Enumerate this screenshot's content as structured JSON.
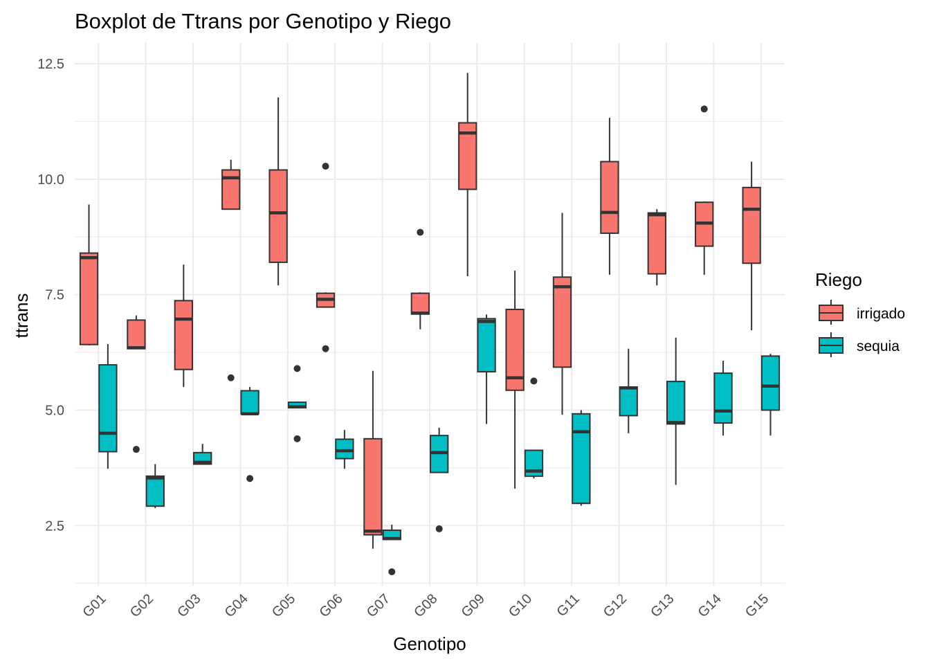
{
  "chart_data": {
    "type": "boxplot",
    "title": "Boxplot de Ttrans por Genotipo y Riego",
    "xlabel": "Genotipo",
    "ylabel": "ttrans",
    "ylim": [
      1.2,
      12.95
    ],
    "yticks": [
      2.5,
      5.0,
      7.5,
      10.0,
      12.5
    ],
    "ytick_labels": [
      "2.5",
      "5.0",
      "7.5",
      "10.0",
      "12.5"
    ],
    "categories": [
      "G01",
      "G02",
      "G03",
      "G04",
      "G05",
      "G06",
      "G07",
      "G08",
      "G09",
      "G10",
      "G11",
      "G12",
      "G13",
      "G14",
      "G15"
    ],
    "grid": true,
    "legend": {
      "title": "Riego",
      "position": "right"
    },
    "series": [
      {
        "name": "irrigado",
        "color": "#F8766D",
        "boxes": [
          {
            "whisker_low": 6.4,
            "q1": 6.42,
            "median": 8.3,
            "q3": 8.4,
            "whisker_high": 9.45,
            "outliers": []
          },
          {
            "whisker_low": 6.33,
            "q1": 6.33,
            "median": 6.35,
            "q3": 6.95,
            "whisker_high": 7.05,
            "outliers": [
              4.15
            ]
          },
          {
            "whisker_low": 5.5,
            "q1": 5.88,
            "median": 6.97,
            "q3": 7.37,
            "whisker_high": 8.15,
            "outliers": []
          },
          {
            "whisker_low": 9.35,
            "q1": 9.35,
            "median": 10.03,
            "q3": 10.2,
            "whisker_high": 10.42,
            "outliers": [
              5.7
            ]
          },
          {
            "whisker_low": 7.7,
            "q1": 8.2,
            "median": 9.27,
            "q3": 10.2,
            "whisker_high": 11.77,
            "outliers": []
          },
          {
            "whisker_low": 7.23,
            "q1": 7.23,
            "median": 7.4,
            "q3": 7.53,
            "whisker_high": 7.55,
            "outliers": [
              10.28,
              6.33
            ]
          },
          {
            "whisker_low": 2.0,
            "q1": 2.3,
            "median": 2.38,
            "q3": 4.38,
            "whisker_high": 5.85,
            "outliers": []
          },
          {
            "whisker_low": 6.75,
            "q1": 7.08,
            "median": 7.1,
            "q3": 7.53,
            "whisker_high": 7.55,
            "outliers": [
              8.85
            ]
          },
          {
            "whisker_low": 7.9,
            "q1": 9.78,
            "median": 11.0,
            "q3": 11.22,
            "whisker_high": 12.3,
            "outliers": []
          },
          {
            "whisker_low": 3.3,
            "q1": 5.43,
            "median": 5.7,
            "q3": 7.18,
            "whisker_high": 8.02,
            "outliers": []
          },
          {
            "whisker_low": 4.9,
            "q1": 5.93,
            "median": 7.67,
            "q3": 7.88,
            "whisker_high": 9.27,
            "outliers": []
          },
          {
            "whisker_low": 7.93,
            "q1": 8.83,
            "median": 9.28,
            "q3": 10.38,
            "whisker_high": 11.33,
            "outliers": []
          },
          {
            "whisker_low": 7.7,
            "q1": 7.95,
            "median": 9.23,
            "q3": 9.27,
            "whisker_high": 9.35,
            "outliers": []
          },
          {
            "whisker_low": 7.93,
            "q1": 8.55,
            "median": 9.05,
            "q3": 9.5,
            "whisker_high": 9.52,
            "outliers": [
              11.52
            ]
          },
          {
            "whisker_low": 6.73,
            "q1": 8.18,
            "median": 9.35,
            "q3": 9.82,
            "whisker_high": 10.38,
            "outliers": []
          }
        ]
      },
      {
        "name": "sequia",
        "color": "#00BFC4",
        "boxes": [
          {
            "whisker_low": 3.73,
            "q1": 4.1,
            "median": 4.5,
            "q3": 5.98,
            "whisker_high": 6.43,
            "outliers": []
          },
          {
            "whisker_low": 2.88,
            "q1": 2.92,
            "median": 3.53,
            "q3": 3.57,
            "whisker_high": 3.83,
            "outliers": []
          },
          {
            "whisker_low": 3.82,
            "q1": 3.83,
            "median": 3.87,
            "q3": 4.08,
            "whisker_high": 4.27,
            "outliers": []
          },
          {
            "whisker_low": 4.92,
            "q1": 4.92,
            "median": 4.92,
            "q3": 5.42,
            "whisker_high": 5.5,
            "outliers": [
              3.52
            ]
          },
          {
            "whisker_low": 5.05,
            "q1": 5.05,
            "median": 5.07,
            "q3": 5.17,
            "whisker_high": 5.18,
            "outliers": [
              5.9,
              4.38
            ]
          },
          {
            "whisker_low": 3.73,
            "q1": 3.95,
            "median": 4.12,
            "q3": 4.37,
            "whisker_high": 4.57,
            "outliers": []
          },
          {
            "whisker_low": 2.2,
            "q1": 2.2,
            "median": 2.22,
            "q3": 2.4,
            "whisker_high": 2.52,
            "outliers": [
              1.5
            ]
          },
          {
            "whisker_low": 3.65,
            "q1": 3.65,
            "median": 4.08,
            "q3": 4.45,
            "whisker_high": 4.62,
            "outliers": [
              2.43
            ]
          },
          {
            "whisker_low": 4.7,
            "q1": 5.83,
            "median": 6.92,
            "q3": 6.98,
            "whisker_high": 7.07,
            "outliers": []
          },
          {
            "whisker_low": 3.52,
            "q1": 3.57,
            "median": 3.68,
            "q3": 4.13,
            "whisker_high": 4.13,
            "outliers": [
              5.63
            ]
          },
          {
            "whisker_low": 2.93,
            "q1": 2.98,
            "median": 4.53,
            "q3": 4.92,
            "whisker_high": 5.0,
            "outliers": []
          },
          {
            "whisker_low": 4.5,
            "q1": 4.88,
            "median": 5.48,
            "q3": 5.5,
            "whisker_high": 6.33,
            "outliers": []
          },
          {
            "whisker_low": 3.38,
            "q1": 4.7,
            "median": 4.73,
            "q3": 5.62,
            "whisker_high": 6.57,
            "outliers": []
          },
          {
            "whisker_low": 4.45,
            "q1": 4.72,
            "median": 4.98,
            "q3": 5.8,
            "whisker_high": 6.07,
            "outliers": []
          },
          {
            "whisker_low": 4.45,
            "q1": 5.0,
            "median": 5.52,
            "q3": 6.17,
            "whisker_high": 6.22,
            "outliers": []
          }
        ]
      }
    ]
  }
}
